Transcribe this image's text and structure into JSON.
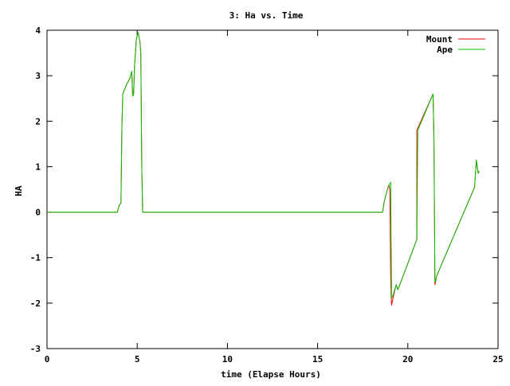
{
  "chart_data": {
    "type": "line",
    "title": "3: Ha vs. Time",
    "xlabel": "time (Elapse Hours)",
    "ylabel": "HA",
    "xlim": [
      0,
      25
    ],
    "ylim": [
      -3,
      4
    ],
    "xticks": [
      "0",
      "5",
      "10",
      "15",
      "20",
      "25"
    ],
    "yticks": [
      "-3",
      "-2",
      "-1",
      "0",
      "1",
      "2",
      "3",
      "4"
    ],
    "grid": false,
    "legend_position": "top-right",
    "series": [
      {
        "name": "Mount",
        "color": "#ff0000",
        "points": [
          [
            0,
            0
          ],
          [
            3.9,
            0
          ],
          [
            4.0,
            0.15
          ],
          [
            4.1,
            0.2
          ],
          [
            4.15,
            1.9
          ],
          [
            4.2,
            2.6
          ],
          [
            4.4,
            2.8
          ],
          [
            4.6,
            2.95
          ],
          [
            4.7,
            3.1
          ],
          [
            4.75,
            2.55
          ],
          [
            4.8,
            2.6
          ],
          [
            4.85,
            3.2
          ],
          [
            4.95,
            3.8
          ],
          [
            5.05,
            3.95
          ],
          [
            5.15,
            3.75
          ],
          [
            5.2,
            3.5
          ],
          [
            5.25,
            1.0
          ],
          [
            5.3,
            0
          ],
          [
            18.6,
            0
          ],
          [
            18.7,
            0.25
          ],
          [
            18.8,
            0.4
          ],
          [
            18.95,
            0.6
          ],
          [
            19.0,
            0.5
          ],
          [
            19.05,
            -1.5
          ],
          [
            19.1,
            -2.05
          ],
          [
            19.2,
            -1.85
          ],
          [
            19.35,
            -1.6
          ],
          [
            19.45,
            -1.7
          ],
          [
            19.6,
            -1.55
          ],
          [
            20.5,
            -0.6
          ],
          [
            20.5,
            1.8
          ],
          [
            21.4,
            2.6
          ],
          [
            21.45,
            1.5
          ],
          [
            21.5,
            -1.6
          ],
          [
            21.6,
            -1.4
          ],
          [
            23.7,
            0.55
          ],
          [
            23.8,
            1.15
          ],
          [
            23.9,
            0.85
          ],
          [
            23.95,
            0.9
          ]
        ]
      },
      {
        "name": "Ape",
        "color": "#00c000",
        "points": [
          [
            0,
            0
          ],
          [
            3.9,
            0
          ],
          [
            4.0,
            0.15
          ],
          [
            4.1,
            0.2
          ],
          [
            4.15,
            1.9
          ],
          [
            4.2,
            2.6
          ],
          [
            4.4,
            2.8
          ],
          [
            4.6,
            2.95
          ],
          [
            4.7,
            3.1
          ],
          [
            4.75,
            2.55
          ],
          [
            4.8,
            2.6
          ],
          [
            4.85,
            3.2
          ],
          [
            4.95,
            3.8
          ],
          [
            5.05,
            3.95
          ],
          [
            5.15,
            3.75
          ],
          [
            5.2,
            3.5
          ],
          [
            5.25,
            1.0
          ],
          [
            5.3,
            0
          ],
          [
            18.6,
            0
          ],
          [
            18.7,
            0.25
          ],
          [
            18.8,
            0.4
          ],
          [
            18.95,
            0.6
          ],
          [
            19.05,
            0.65
          ],
          [
            19.1,
            -1.9
          ],
          [
            19.2,
            -1.8
          ],
          [
            19.35,
            -1.6
          ],
          [
            19.45,
            -1.7
          ],
          [
            19.6,
            -1.55
          ],
          [
            20.5,
            -0.6
          ],
          [
            20.55,
            1.8
          ],
          [
            21.4,
            2.6
          ],
          [
            21.45,
            1.6
          ],
          [
            21.5,
            -1.55
          ],
          [
            21.6,
            -1.4
          ],
          [
            23.7,
            0.55
          ],
          [
            23.8,
            1.15
          ],
          [
            23.9,
            0.85
          ],
          [
            23.95,
            0.9
          ]
        ]
      }
    ]
  }
}
